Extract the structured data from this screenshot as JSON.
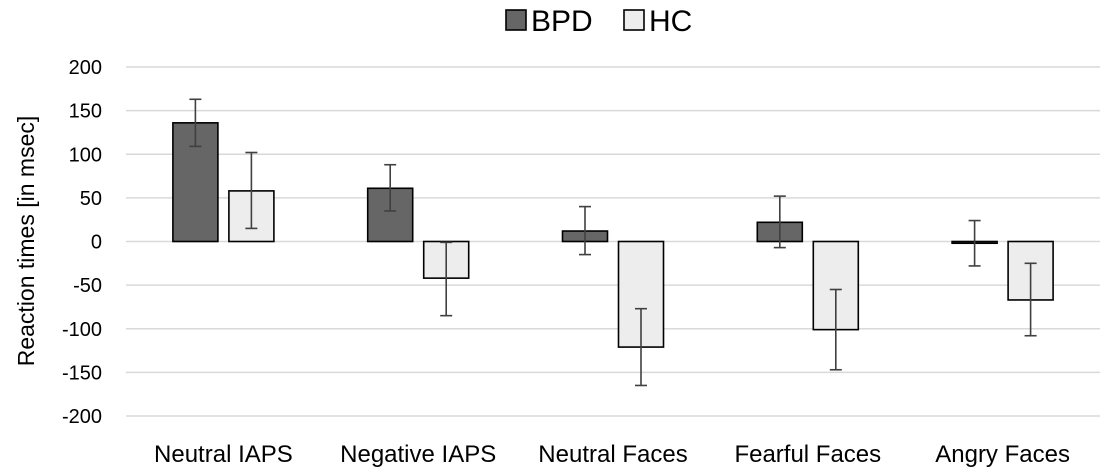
{
  "chart_data": {
    "type": "bar",
    "title": "",
    "xlabel": "",
    "ylabel": "Reaction times [in msec]",
    "ylim": [
      -200,
      200
    ],
    "yticks": [
      200,
      150,
      100,
      50,
      0,
      -50,
      -100,
      -150,
      -200
    ],
    "grid": true,
    "legend_position": "top-center",
    "categories": [
      "Neutral IAPS",
      "Negative IAPS",
      "Neutral Faces",
      "Fearful Faces",
      "Angry Faces"
    ],
    "series": [
      {
        "name": "BPD",
        "color": "#666666",
        "values": [
          136,
          61,
          12,
          22,
          -2
        ],
        "error_low": [
          109,
          35,
          -15,
          -7,
          -28
        ],
        "error_high": [
          163,
          88,
          40,
          52,
          24
        ]
      },
      {
        "name": "HC",
        "color": "#ededed",
        "values": [
          58,
          -42,
          -121,
          -101,
          -67
        ],
        "error_low": [
          15,
          -85,
          -165,
          -147,
          -108
        ],
        "error_high": [
          102,
          -1,
          -77,
          -55,
          -25
        ]
      }
    ]
  }
}
